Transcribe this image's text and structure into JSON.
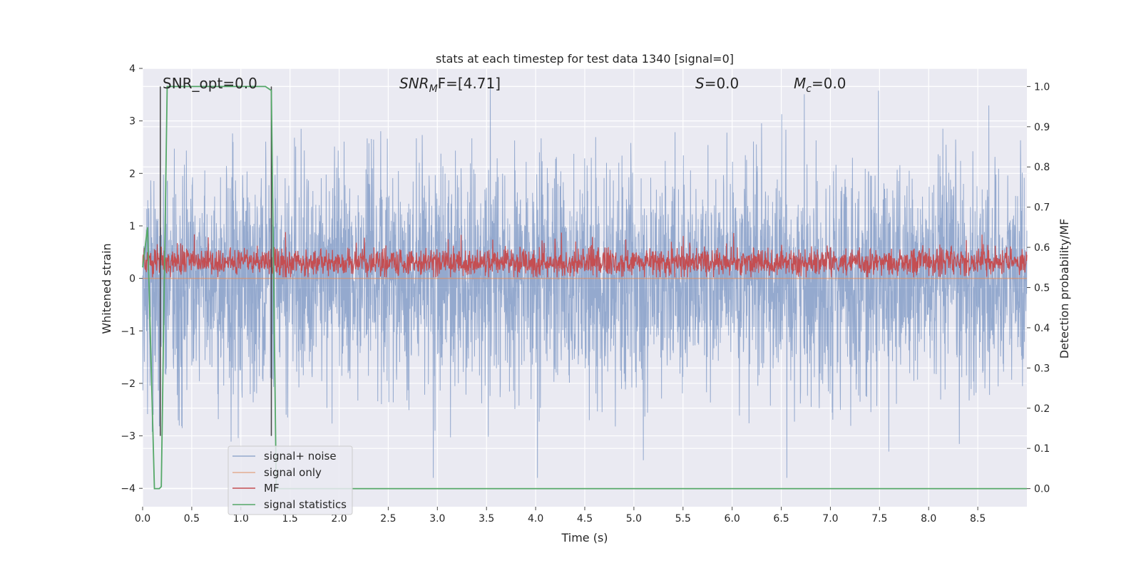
{
  "chart_data": {
    "type": "line",
    "title": "stats at each timestep for test data 1340 [signal=0]",
    "xlabel": "Time (s)",
    "ylabel_left": "Whitened strain",
    "ylabel_right": "Detection probability/MF",
    "xlim": [
      0.0,
      9.0
    ],
    "ylim_left": [
      -4.35,
      4.0
    ],
    "ylim_right": [
      -0.045,
      1.045
    ],
    "x_ticks": [
      "0.0",
      "0.5",
      "1.0",
      "1.5",
      "2.0",
      "2.5",
      "3.0",
      "3.5",
      "4.0",
      "4.5",
      "5.0",
      "5.5",
      "6.0",
      "6.5",
      "7.0",
      "7.5",
      "8.0",
      "8.5"
    ],
    "y_ticks_left": [
      "4",
      "3",
      "2",
      "1",
      "0",
      "−1",
      "−2",
      "−3",
      "−4"
    ],
    "y_ticks_right": [
      "1.0",
      "0.9",
      "0.8",
      "0.7",
      "0.6",
      "0.5",
      "0.4",
      "0.3",
      "0.2",
      "0.1",
      "0.0"
    ],
    "grid": true,
    "legend_placement": "lower-left",
    "annotations": {
      "snr_opt": "SNR_opt=0.0",
      "snr_mf_prefix": "SNR",
      "snr_mf_sub": "M",
      "snr_mf_suffix": "F=[4.71]",
      "s_main": "S",
      "s_value": "=0.0",
      "mc_main": "M",
      "mc_sub": "c",
      "mc_value": "=0.0"
    },
    "series": [
      {
        "name": "signal+ noise",
        "color": "#4c72b0",
        "note": "whitened strain noise, approx within [-3.8, 3.7]"
      },
      {
        "name": "signal only",
        "color": "#dd8452",
        "note": "flat at 0 (no signal)"
      },
      {
        "name": "MF",
        "color": "#c44e52",
        "note": "matched-filter output, roughly 0.0 to 0.8 on left axis"
      },
      {
        "name": "signal statistics",
        "color": "#55a868",
        "x": [
          0.0,
          0.05,
          0.12,
          0.17,
          0.19,
          0.25,
          0.3,
          1.25,
          1.31,
          1.36,
          1.4,
          9.0
        ],
        "y": [
          0.55,
          0.65,
          0.0,
          0.0,
          0.005,
          1.0,
          1.0,
          1.0,
          0.99,
          0.0,
          0.0,
          0.0
        ]
      },
      {
        "name": "",
        "color": "#444444",
        "note": "vertical markers",
        "x": [
          0.18,
          1.31
        ]
      }
    ]
  }
}
